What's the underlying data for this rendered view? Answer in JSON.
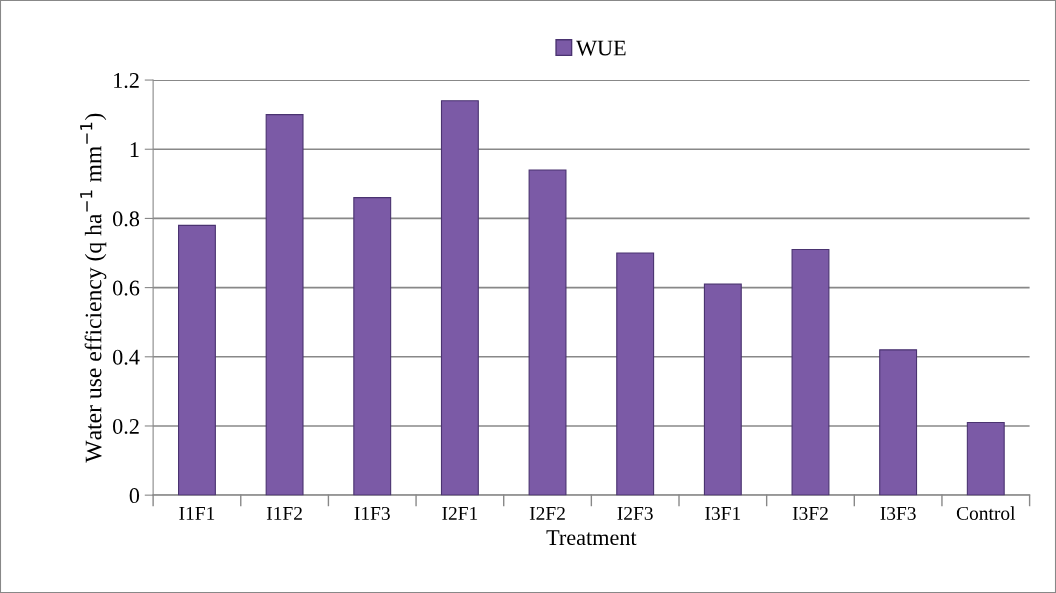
{
  "chart_data": {
    "type": "bar",
    "xlabel": "Treatment",
    "ylabel": "Water use efficiency (q ha$^{−1}$ mm$^{−1}$)",
    "categories": [
      "I1F1",
      "I1F2",
      "I1F3",
      "I2F1",
      "I2F2",
      "I2F3",
      "I3F1",
      "I3F2",
      "I3F3",
      "Control"
    ],
    "series": [
      {
        "name": "WUE",
        "color": "#7b5aa6",
        "values": [
          0.78,
          1.1,
          0.86,
          1.14,
          0.94,
          0.7,
          0.61,
          0.71,
          0.42,
          0.21
        ]
      }
    ],
    "ylim": [
      0,
      1.2
    ],
    "yticks": [
      0,
      0.2,
      0.4,
      0.6,
      0.8,
      1,
      1.2
    ],
    "grid": "y",
    "legend": "top"
  }
}
